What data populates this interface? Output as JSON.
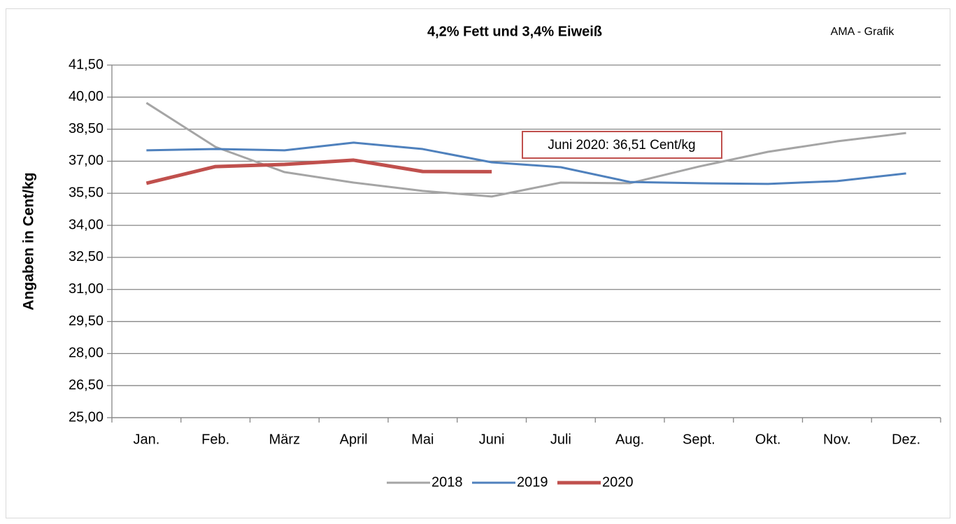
{
  "chart_data": {
    "type": "line",
    "title": "4,2% Fett und 3,4% Eiweiß",
    "source": "AMA - Grafik",
    "y_label": "Angaben in Cent/kg",
    "annotation": "Juni 2020: 36,51 Cent/kg",
    "categories": [
      "Jan.",
      "Feb.",
      "März",
      "April",
      "Mai",
      "Juni",
      "Juli",
      "Aug.",
      "Sept.",
      "Okt.",
      "Nov.",
      "Dez."
    ],
    "series": [
      {
        "name": "2018",
        "color": "#a5a5a5",
        "width": 3,
        "values": [
          39.73,
          37.67,
          36.49,
          36.0,
          35.61,
          35.35,
          36.0,
          35.97,
          36.75,
          37.44,
          37.93,
          38.32
        ]
      },
      {
        "name": "2019",
        "color": "#4f81bd",
        "width": 3,
        "values": [
          37.51,
          37.57,
          37.51,
          37.87,
          37.57,
          36.95,
          36.72,
          36.03,
          35.97,
          35.94,
          36.07,
          36.43
        ]
      },
      {
        "name": "2020",
        "color": "#c0504d",
        "width": 5,
        "values": [
          35.97,
          36.75,
          36.85,
          37.05,
          36.52,
          36.51,
          null,
          null,
          null,
          null,
          null,
          null
        ]
      }
    ],
    "ylim": [
      25,
      41.5
    ],
    "yticks": [
      {
        "value": 25,
        "label": "25,00"
      },
      {
        "value": 26.5,
        "label": "26,50"
      },
      {
        "value": 28,
        "label": "28,00"
      },
      {
        "value": 29.5,
        "label": "29,50"
      },
      {
        "value": 31,
        "label": "31,00"
      },
      {
        "value": 32.5,
        "label": "32,50"
      },
      {
        "value": 34,
        "label": "34,00"
      },
      {
        "value": 35.5,
        "label": "35,50"
      },
      {
        "value": 37,
        "label": "37,00"
      },
      {
        "value": 38.5,
        "label": "38,50"
      },
      {
        "value": 40,
        "label": "40,00"
      },
      {
        "value": 41.5,
        "label": "41,50"
      }
    ],
    "grid": true
  }
}
